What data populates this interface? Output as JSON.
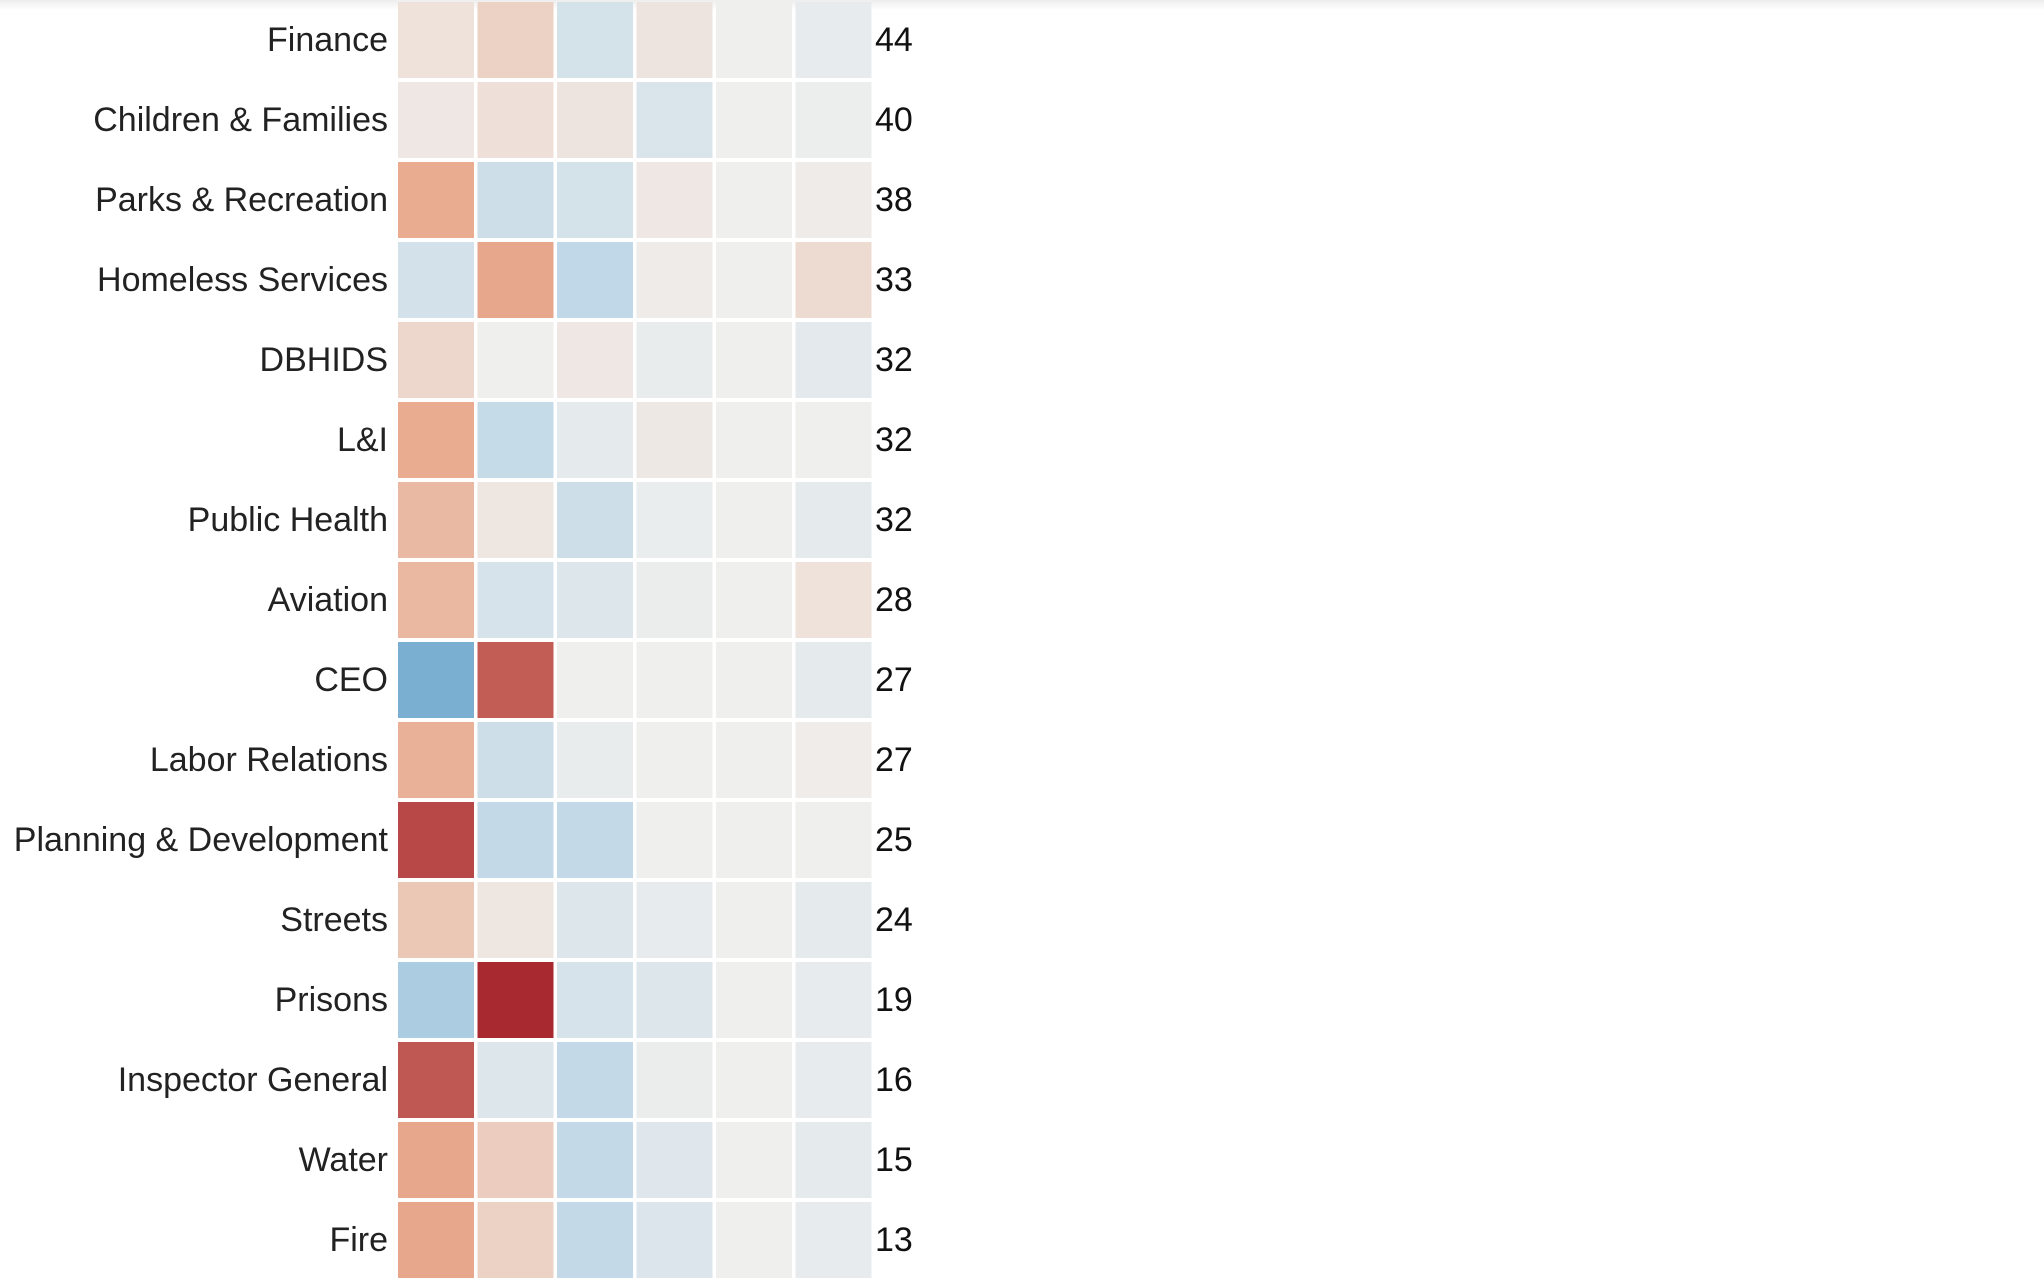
{
  "chart_data": {
    "type": "heatmap",
    "scale": "diverging-red-blue",
    "rows": [
      {
        "label": "Finance",
        "count": "44",
        "values": [
          0.1,
          0.22,
          -0.28,
          0.08,
          0.0,
          -0.08
        ]
      },
      {
        "label": "Children & Families",
        "count": "40",
        "values": [
          0.06,
          0.12,
          0.08,
          -0.22,
          0.0,
          -0.03
        ]
      },
      {
        "label": "Parks & Recreation",
        "count": "38",
        "values": [
          0.5,
          -0.35,
          -0.28,
          0.06,
          0.0,
          0.03
        ]
      },
      {
        "label": "Homeless Services",
        "count": "33",
        "values": [
          -0.3,
          0.52,
          -0.48,
          0.03,
          0.0,
          0.16
        ]
      },
      {
        "label": "DBHIDS",
        "count": "32",
        "values": [
          0.18,
          0.0,
          0.06,
          -0.06,
          0.0,
          -0.12
        ]
      },
      {
        "label": "L&I",
        "count": "32",
        "values": [
          0.5,
          -0.42,
          -0.1,
          0.05,
          0.0,
          0.0
        ]
      },
      {
        "label": "Public Health",
        "count": "32",
        "values": [
          0.4,
          0.07,
          -0.35,
          -0.05,
          0.0,
          -0.1
        ]
      },
      {
        "label": "Aviation",
        "count": "28",
        "values": [
          0.42,
          -0.24,
          -0.18,
          -0.04,
          0.0,
          0.1
        ]
      },
      {
        "label": "CEO",
        "count": "27",
        "values": [
          -0.85,
          0.8,
          0.0,
          0.0,
          0.0,
          -0.1
        ]
      },
      {
        "label": "Labor Relations",
        "count": "27",
        "values": [
          0.46,
          -0.35,
          -0.07,
          0.0,
          0.0,
          0.02
        ]
      },
      {
        "label": "Planning & Development",
        "count": "25",
        "values": [
          0.88,
          -0.45,
          -0.45,
          0.0,
          0.0,
          0.0
        ]
      },
      {
        "label": "Streets",
        "count": "24",
        "values": [
          0.3,
          0.07,
          -0.18,
          -0.08,
          0.0,
          -0.1
        ]
      },
      {
        "label": "Prisons",
        "count": "19",
        "values": [
          -0.6,
          1.0,
          -0.25,
          -0.18,
          0.0,
          -0.08
        ]
      },
      {
        "label": "Inspector General",
        "count": "16",
        "values": [
          0.82,
          -0.18,
          -0.45,
          -0.04,
          0.0,
          -0.08
        ]
      },
      {
        "label": "Water",
        "count": "15",
        "values": [
          0.52,
          0.26,
          -0.45,
          -0.16,
          0.0,
          -0.1
        ]
      },
      {
        "label": "Fire",
        "count": "13",
        "values": [
          0.52,
          0.22,
          -0.45,
          -0.2,
          0.0,
          -0.08
        ]
      }
    ],
    "colors": {
      "neutral": "#efefee",
      "positive_max": "#a8292f",
      "negative_max": "#5d9ec8",
      "gap": "#ffffff"
    },
    "title": "",
    "xlabel": "",
    "ylabel": ""
  }
}
